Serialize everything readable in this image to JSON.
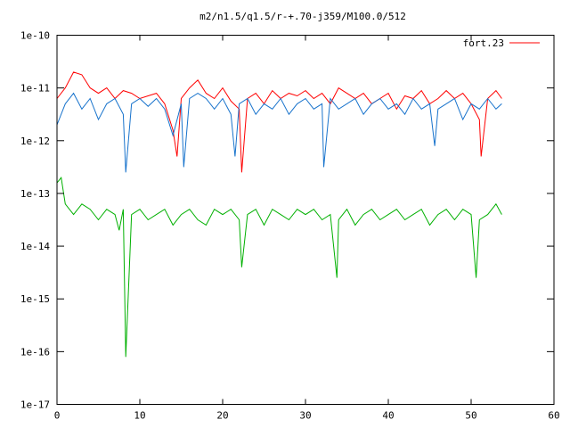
{
  "chart_data": {
    "type": "line",
    "title": "m2/n1.5/q1.5/r-+.70-j359/M100.0/512",
    "xlabel": "",
    "ylabel": "",
    "x_range": [
      0,
      60
    ],
    "y_range": [
      1e-17,
      1e-10
    ],
    "y_scale": "log",
    "x_ticks": [
      "0",
      "10",
      "20",
      "30",
      "40",
      "50",
      "60"
    ],
    "x_tick_values": [
      0,
      10,
      20,
      30,
      40,
      50,
      60
    ],
    "y_ticks": [
      "1e-17",
      "1e-16",
      "1e-15",
      "1e-14",
      "1e-13",
      "1e-12",
      "1e-11",
      "1e-10"
    ],
    "y_tick_values": [
      1e-17,
      1e-16,
      1e-15,
      1e-14,
      1e-13,
      1e-12,
      1e-11,
      1e-10
    ],
    "grid": false,
    "legend_position": "top-right",
    "series": [
      {
        "name": "fort.23",
        "color": "#ff0000",
        "x": [
          0,
          1,
          2,
          3,
          4,
          5,
          6,
          7,
          8,
          9,
          10,
          11,
          12,
          13,
          14,
          14.5,
          15,
          16,
          17,
          18,
          19,
          20,
          21,
          22,
          22.3,
          23,
          24,
          25,
          26,
          27,
          28,
          29,
          30,
          31,
          32,
          33,
          34,
          35,
          36,
          37,
          38,
          39,
          40,
          41,
          42,
          43,
          44,
          45,
          46,
          47,
          48,
          49,
          50,
          51,
          51.2,
          52,
          53,
          53.7
        ],
        "log10y": [
          -11.2,
          -11.0,
          -10.7,
          -10.75,
          -11.0,
          -11.1,
          -11.0,
          -11.2,
          -11.05,
          -11.1,
          -11.2,
          -11.15,
          -11.1,
          -11.3,
          -11.8,
          -12.3,
          -11.2,
          -11.0,
          -10.85,
          -11.1,
          -11.2,
          -11.0,
          -11.25,
          -11.4,
          -12.6,
          -11.2,
          -11.1,
          -11.3,
          -11.05,
          -11.2,
          -11.1,
          -11.15,
          -11.05,
          -11.2,
          -11.1,
          -11.3,
          -11.0,
          -11.1,
          -11.2,
          -11.1,
          -11.3,
          -11.2,
          -11.1,
          -11.4,
          -11.15,
          -11.2,
          -11.05,
          -11.3,
          -11.2,
          -11.05,
          -11.2,
          -11.1,
          -11.3,
          -11.6,
          -12.3,
          -11.2,
          -11.05,
          -11.2
        ]
      },
      {
        "name": "",
        "color": "#1873cc",
        "x": [
          0,
          1,
          2,
          3,
          4,
          5,
          6,
          7,
          8,
          8.3,
          9,
          10,
          11,
          12,
          13,
          14,
          15,
          15.3,
          16,
          17,
          18,
          19,
          20,
          21,
          21.5,
          22,
          23,
          24,
          25,
          26,
          27,
          28,
          29,
          30,
          31,
          32,
          32.2,
          33,
          34,
          35,
          36,
          37,
          38,
          39,
          40,
          41,
          42,
          43,
          44,
          45,
          45.6,
          46,
          47,
          48,
          49,
          50,
          51,
          52,
          53,
          53.7
        ],
        "log10y": [
          -11.7,
          -11.3,
          -11.1,
          -11.4,
          -11.2,
          -11.6,
          -11.3,
          -11.2,
          -11.5,
          -12.6,
          -11.3,
          -11.2,
          -11.35,
          -11.2,
          -11.4,
          -11.9,
          -11.3,
          -12.5,
          -11.2,
          -11.1,
          -11.2,
          -11.4,
          -11.2,
          -11.5,
          -12.3,
          -11.3,
          -11.2,
          -11.5,
          -11.3,
          -11.4,
          -11.2,
          -11.5,
          -11.3,
          -11.2,
          -11.4,
          -11.3,
          -12.5,
          -11.2,
          -11.4,
          -11.3,
          -11.2,
          -11.5,
          -11.3,
          -11.2,
          -11.4,
          -11.3,
          -11.5,
          -11.2,
          -11.4,
          -11.3,
          -12.1,
          -11.4,
          -11.3,
          -11.2,
          -11.6,
          -11.3,
          -11.4,
          -11.2,
          -11.4,
          -11.3
        ]
      },
      {
        "name": "",
        "color": "#00b000",
        "x": [
          0,
          0.5,
          1,
          2,
          3,
          4,
          5,
          6,
          7,
          7.5,
          8,
          8.3,
          9,
          10,
          11,
          12,
          13,
          14,
          15,
          16,
          17,
          18,
          19,
          20,
          21,
          22,
          22.3,
          23,
          24,
          25,
          26,
          27,
          28,
          29,
          30,
          31,
          32,
          33,
          33.8,
          34,
          35,
          36,
          37,
          38,
          39,
          40,
          41,
          42,
          43,
          44,
          45,
          46,
          47,
          48,
          49,
          50,
          50.6,
          51,
          52,
          53,
          53.7
        ],
        "log10y": [
          -12.8,
          -12.7,
          -13.2,
          -13.4,
          -13.2,
          -13.3,
          -13.5,
          -13.3,
          -13.4,
          -13.7,
          -13.3,
          -16.1,
          -13.4,
          -13.3,
          -13.5,
          -13.4,
          -13.3,
          -13.6,
          -13.4,
          -13.3,
          -13.5,
          -13.6,
          -13.3,
          -13.4,
          -13.3,
          -13.5,
          -14.4,
          -13.4,
          -13.3,
          -13.6,
          -13.3,
          -13.4,
          -13.5,
          -13.3,
          -13.4,
          -13.3,
          -13.5,
          -13.4,
          -14.6,
          -13.5,
          -13.3,
          -13.6,
          -13.4,
          -13.3,
          -13.5,
          -13.4,
          -13.3,
          -13.5,
          -13.4,
          -13.3,
          -13.6,
          -13.4,
          -13.3,
          -13.5,
          -13.3,
          -13.4,
          -14.6,
          -13.5,
          -13.4,
          -13.2,
          -13.4
        ]
      }
    ]
  }
}
